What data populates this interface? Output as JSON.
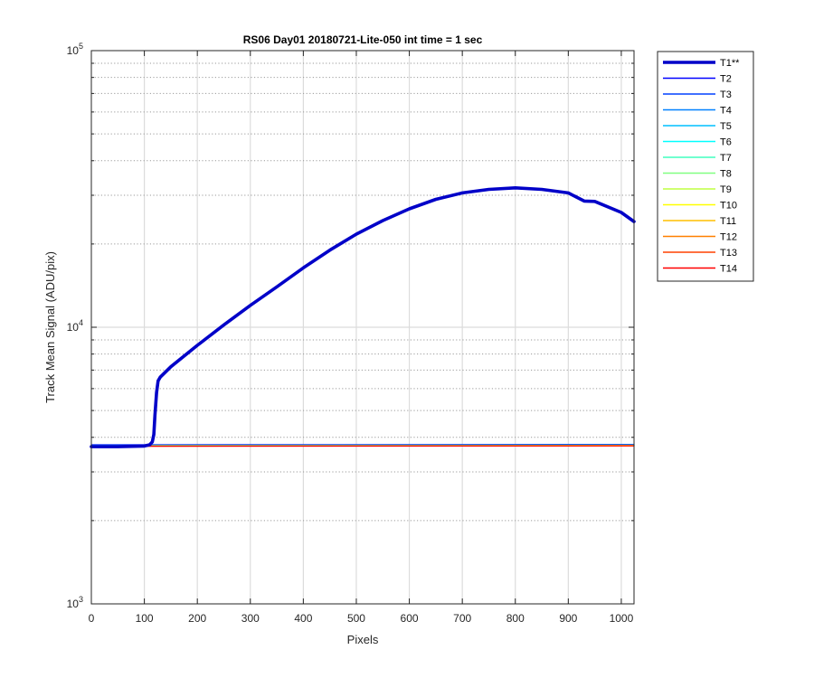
{
  "chart_data": {
    "type": "line",
    "title": "RS06 Day01 20180721-Lite-050 int time = 1 sec",
    "xlabel": "Pixels",
    "ylabel": "Track Mean Signal (ADU/pix)",
    "xlim": [
      0,
      1024
    ],
    "ylim": [
      1000,
      100000
    ],
    "y_scale": "log",
    "grid": true,
    "legend_position": "outside-top-right",
    "x_ticks": [
      0,
      100,
      200,
      300,
      400,
      500,
      600,
      700,
      800,
      900,
      1000
    ],
    "x_tick_labels": [
      "0",
      "100",
      "200",
      "300",
      "400",
      "500",
      "600",
      "700",
      "800",
      "900",
      "1000"
    ],
    "y_ticks": [
      1000,
      10000,
      100000
    ],
    "y_tick_base": "10",
    "y_tick_exponents": [
      "3",
      "4",
      "5"
    ],
    "series": [
      {
        "name": "T1**",
        "color": "#0000c8",
        "highlight": true,
        "x": [
          0,
          50,
          100,
          110,
          115,
          118,
          120,
          123,
          126,
          130,
          150,
          200,
          250,
          300,
          350,
          400,
          450,
          500,
          550,
          600,
          650,
          700,
          750,
          800,
          850,
          900,
          930,
          950,
          1000,
          1024
        ],
        "y": [
          3700,
          3700,
          3720,
          3760,
          3850,
          4100,
          4800,
          5800,
          6400,
          6600,
          7200,
          8600,
          10200,
          12000,
          14000,
          16400,
          19000,
          21700,
          24300,
          26800,
          29000,
          30600,
          31500,
          31900,
          31500,
          30600,
          28600,
          28500,
          26000,
          24100
        ]
      },
      {
        "name": "T2",
        "color": "#0000ff",
        "x": [
          0,
          1024
        ],
        "y": [
          3760,
          3770
        ]
      },
      {
        "name": "T3",
        "color": "#0040ff",
        "x": [
          0,
          1024
        ],
        "y": [
          3750,
          3760
        ]
      },
      {
        "name": "T4",
        "color": "#0080ff",
        "x": [
          0,
          1024
        ],
        "y": [
          3740,
          3755
        ]
      },
      {
        "name": "T5",
        "color": "#00bfff",
        "x": [
          0,
          1024
        ],
        "y": [
          3735,
          3750
        ]
      },
      {
        "name": "T6",
        "color": "#00ffff",
        "x": [
          0,
          1024
        ],
        "y": [
          3730,
          3745
        ]
      },
      {
        "name": "T7",
        "color": "#40ffbf",
        "x": [
          0,
          1024
        ],
        "y": [
          3728,
          3742
        ]
      },
      {
        "name": "T8",
        "color": "#80ff80",
        "x": [
          0,
          1024
        ],
        "y": [
          3725,
          3740
        ]
      },
      {
        "name": "T9",
        "color": "#bfff40",
        "x": [
          0,
          1024
        ],
        "y": [
          3722,
          3738
        ]
      },
      {
        "name": "T10",
        "color": "#ffff00",
        "x": [
          0,
          1024
        ],
        "y": [
          3720,
          3735
        ]
      },
      {
        "name": "T11",
        "color": "#ffbf00",
        "x": [
          0,
          1024
        ],
        "y": [
          3718,
          3733
        ]
      },
      {
        "name": "T12",
        "color": "#ff8000",
        "x": [
          0,
          1024
        ],
        "y": [
          3716,
          3731
        ]
      },
      {
        "name": "T13",
        "color": "#ff4000",
        "x": [
          0,
          1024
        ],
        "y": [
          3714,
          3729
        ]
      },
      {
        "name": "T14",
        "color": "#ff0000",
        "x": [
          0,
          1024
        ],
        "y": [
          3712,
          3727
        ]
      }
    ]
  }
}
